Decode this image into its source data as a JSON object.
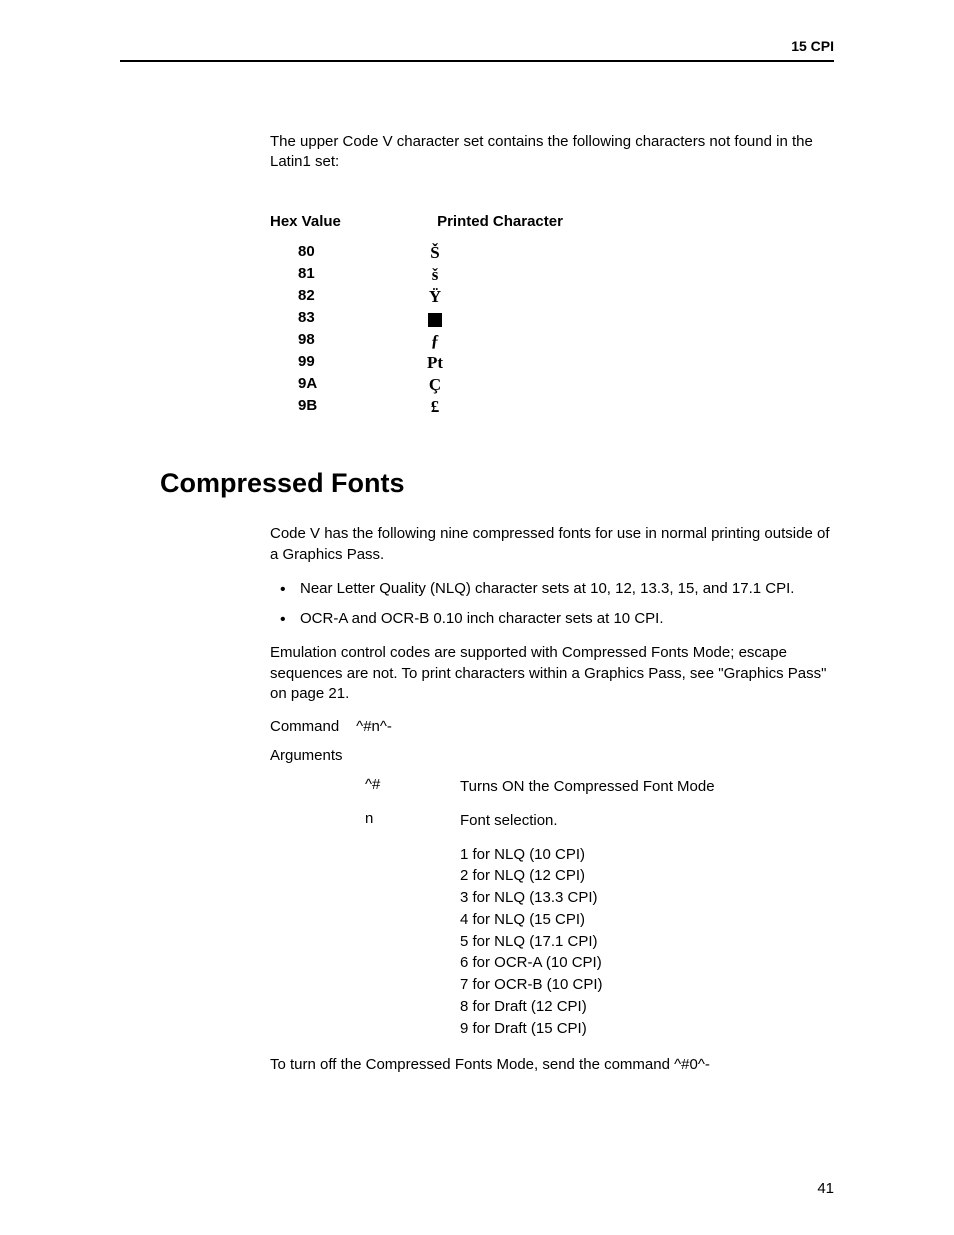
{
  "header": {
    "title": "15 CPI"
  },
  "intro": "The upper Code V character set contains the following characters not found in the Latin1 set:",
  "char_table": {
    "headers": {
      "hex": "Hex Value",
      "printed": "Printed Character"
    },
    "rows": [
      {
        "hex": "80",
        "char": "Š",
        "is_square": false
      },
      {
        "hex": "81",
        "char": "š",
        "is_square": false
      },
      {
        "hex": "82",
        "char": "Ÿ",
        "is_square": false
      },
      {
        "hex": "83",
        "char": "",
        "is_square": true
      },
      {
        "hex": "98",
        "char": "ƒ",
        "is_square": false
      },
      {
        "hex": "99",
        "char": "Pt",
        "is_square": false
      },
      {
        "hex": "9A",
        "char": "Ç",
        "is_square": false
      },
      {
        "hex": "9B",
        "char": "£",
        "is_square": false
      }
    ]
  },
  "section": {
    "heading": "Compressed Fonts",
    "intro": "Code V has the following nine compressed fonts for use in normal printing outside of a Graphics Pass.",
    "bullets": [
      "Near Letter Quality (NLQ) character sets at 10, 12, 13.3, 15, and 17.1 CPI.",
      "OCR-A and OCR-B 0.10 inch character sets at 10 CPI."
    ],
    "emulation_note": "Emulation control codes are supported with Compressed Fonts Mode; escape sequences are not. To print characters within a Graphics Pass, see \"Graphics Pass\" on page 21.",
    "command": {
      "label": "Command",
      "value": "^#n^-"
    },
    "arguments": {
      "label": "Arguments",
      "rows": [
        {
          "key": "^#",
          "desc": "Turns ON the Compressed Font Mode"
        },
        {
          "key": "n",
          "desc": "Font selection."
        }
      ],
      "font_list": [
        "1 for NLQ (10 CPI)",
        "2 for NLQ (12 CPI)",
        "3 for NLQ (13.3 CPI)",
        "4 for NLQ (15 CPI)",
        "5 for NLQ (17.1 CPI)",
        "6 for OCR-A (10 CPI)",
        "7 for OCR-B (10 CPI)",
        "8 for Draft (12 CPI)",
        "9 for Draft (15 CPI)"
      ]
    },
    "turn_off": "To turn off the Compressed Fonts Mode, send the command ^#0^-"
  },
  "page_number": "41"
}
